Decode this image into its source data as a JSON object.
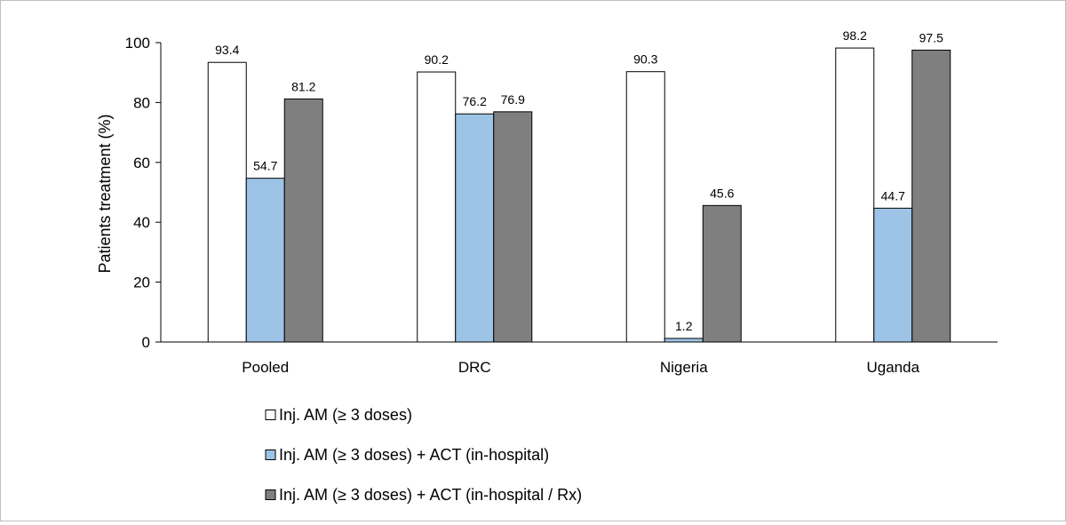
{
  "chart_data": {
    "type": "bar",
    "title": "",
    "xlabel": "",
    "ylabel": "Patients treatment (%)",
    "ylim": [
      0,
      100
    ],
    "yticks": [
      0,
      20,
      40,
      60,
      80,
      100
    ],
    "grid": false,
    "legend_position": "bottom",
    "categories": [
      "Pooled",
      "DRC",
      "Nigeria",
      "Uganda"
    ],
    "series": [
      {
        "name": "Inj. AM (≥ 3 doses)",
        "color": "#ffffff",
        "values": [
          93.4,
          90.2,
          90.3,
          98.2
        ],
        "labels": [
          "93.4",
          "90.2",
          "90.3",
          "98.2"
        ]
      },
      {
        "name": "Inj. AM (≥ 3 doses) + ACT (in-hospital)",
        "color": "#9dc3e6",
        "values": [
          54.7,
          76.2,
          1.2,
          44.7
        ],
        "labels": [
          "54.7",
          "76.2",
          "1.2",
          "44.7"
        ]
      },
      {
        "name": "Inj. AM (≥ 3 doses) + ACT (in-hospital / Rx)",
        "color": "#7f7f7f",
        "values": [
          81.2,
          76.9,
          45.6,
          97.5
        ],
        "labels": [
          "81.2",
          "76.9",
          "45.6",
          "97.5"
        ]
      }
    ]
  }
}
